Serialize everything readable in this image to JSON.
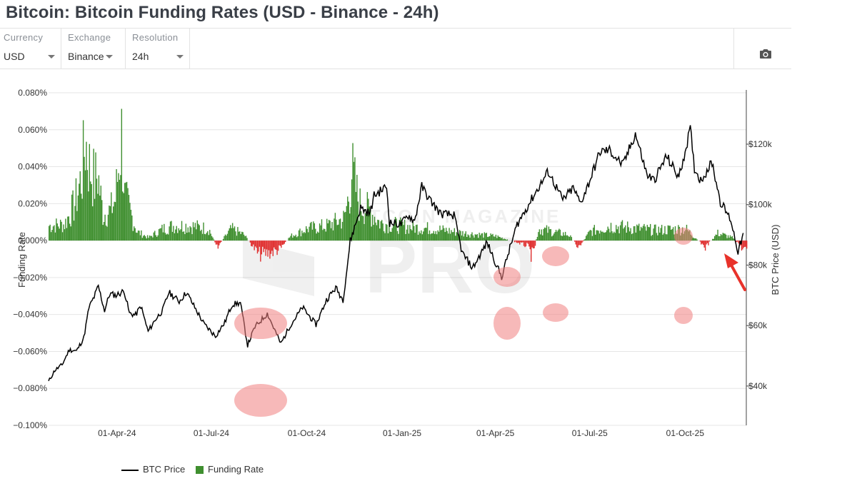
{
  "title": "Bitcoin: Bitcoin Funding Rates (USD - Binance - 24h)",
  "controls": [
    {
      "label": "Currency",
      "value": "USD"
    },
    {
      "label": "Exchange",
      "value": "Binance"
    },
    {
      "label": "Resolution",
      "value": "24h"
    }
  ],
  "camera_icon": "camera-icon",
  "watermark": {
    "line1": "BITCOIN MAGAZINE",
    "line2": "PRO"
  },
  "legend": {
    "price": "BTC Price",
    "funding": "Funding Rate"
  },
  "colors": {
    "price": "#000000",
    "positive": "#3f8f2f",
    "negative": "#e03030",
    "highlight": "#f08080",
    "arrow": "#e8322a",
    "grid": "#e6e6e6"
  },
  "chart_data": {
    "type": "bar+line",
    "ylabel_left": "Funding Rate",
    "ylabel_right": "BTC Price (USD)",
    "left_ticks": [
      "0.080%",
      "0.060%",
      "0.040%",
      "0.020%",
      "0.000%",
      "−0.020%",
      "−0.040%",
      "−0.060%",
      "−0.080%",
      "−0.100%"
    ],
    "left_range": [
      -0.1,
      0.08
    ],
    "right_ticks": [
      "$120k",
      "$100k",
      "$80k",
      "$60k",
      "$40k"
    ],
    "right_range": [
      27000,
      137000
    ],
    "x_ticks": [
      "01-Apr-24",
      "01-Jul-24",
      "01-Oct-24",
      "01-Jan-25",
      "01-Apr-25",
      "01-Jul-25",
      "01-Oct-25"
    ],
    "series": [
      {
        "name": "BTC Price",
        "points": [
          [
            "2024-01-26",
            41500
          ],
          [
            "2024-02-01",
            45200
          ],
          [
            "2024-02-08",
            47000
          ],
          [
            "2024-02-15",
            52000
          ],
          [
            "2024-02-22",
            51600
          ],
          [
            "2024-02-29",
            56000
          ],
          [
            "2024-03-05",
            66000
          ],
          [
            "2024-03-10",
            69500
          ],
          [
            "2024-03-14",
            73000
          ],
          [
            "2024-03-20",
            65000
          ],
          [
            "2024-03-25",
            70500
          ],
          [
            "2024-03-31",
            70000
          ],
          [
            "2024-04-08",
            71500
          ],
          [
            "2024-04-13",
            64000
          ],
          [
            "2024-04-19",
            63500
          ],
          [
            "2024-04-24",
            66500
          ],
          [
            "2024-05-01",
            58000
          ],
          [
            "2024-05-08",
            62000
          ],
          [
            "2024-05-15",
            65000
          ],
          [
            "2024-05-21",
            71000
          ],
          [
            "2024-05-31",
            68000
          ],
          [
            "2024-06-07",
            71000
          ],
          [
            "2024-06-15",
            66000
          ],
          [
            "2024-06-24",
            60500
          ],
          [
            "2024-07-05",
            56500
          ],
          [
            "2024-07-14",
            61000
          ],
          [
            "2024-07-21",
            67000
          ],
          [
            "2024-07-29",
            67500
          ],
          [
            "2024-08-05",
            53500
          ],
          [
            "2024-08-12",
            59500
          ],
          [
            "2024-08-24",
            64000
          ],
          [
            "2024-09-06",
            54000
          ],
          [
            "2024-09-15",
            60000
          ],
          [
            "2024-09-27",
            66000
          ],
          [
            "2024-10-10",
            60300
          ],
          [
            "2024-10-20",
            68500
          ],
          [
            "2024-10-29",
            72500
          ],
          [
            "2024-11-05",
            68500
          ],
          [
            "2024-11-08",
            76500
          ],
          [
            "2024-11-12",
            88000
          ],
          [
            "2024-11-22",
            99000
          ],
          [
            "2024-12-01",
            97000
          ],
          [
            "2024-12-05",
            103000
          ],
          [
            "2024-12-17",
            106000
          ],
          [
            "2024-12-20",
            94000
          ],
          [
            "2024-12-31",
            93500
          ],
          [
            "2025-01-07",
            96500
          ],
          [
            "2025-01-13",
            94500
          ],
          [
            "2025-01-20",
            106000
          ],
          [
            "2025-01-27",
            102000
          ],
          [
            "2025-02-07",
            97000
          ],
          [
            "2025-02-20",
            96500
          ],
          [
            "2025-02-28",
            84000
          ],
          [
            "2025-03-10",
            79000
          ],
          [
            "2025-03-24",
            87500
          ],
          [
            "2025-04-07",
            76000
          ],
          [
            "2025-04-14",
            84500
          ],
          [
            "2025-04-22",
            93500
          ],
          [
            "2025-05-08",
            103000
          ],
          [
            "2025-05-22",
            111000
          ],
          [
            "2025-06-05",
            101500
          ],
          [
            "2025-06-15",
            105500
          ],
          [
            "2025-06-22",
            100500
          ],
          [
            "2025-06-30",
            107000
          ],
          [
            "2025-07-11",
            117500
          ],
          [
            "2025-07-20",
            118000
          ],
          [
            "2025-08-02",
            113000
          ],
          [
            "2025-08-14",
            123500
          ],
          [
            "2025-08-25",
            110000
          ],
          [
            "2025-09-01",
            108000
          ],
          [
            "2025-09-13",
            116000
          ],
          [
            "2025-09-25",
            109000
          ],
          [
            "2025-10-06",
            125000
          ],
          [
            "2025-10-10",
            112000
          ],
          [
            "2025-10-16",
            108000
          ],
          [
            "2025-10-27",
            114000
          ],
          [
            "2025-11-04",
            101000
          ],
          [
            "2025-11-14",
            95000
          ],
          [
            "2025-11-21",
            84500
          ],
          [
            "2025-11-26",
            90000
          ]
        ]
      },
      {
        "name": "Funding Rate",
        "values_note": "daily bars, % per 8h (green ≥ 0, red < 0)",
        "points": [
          [
            "2024-01-26",
            0.01
          ],
          [
            "2024-02-10",
            0.011
          ],
          [
            "2024-02-20",
            0.025
          ],
          [
            "2024-02-27",
            0.045
          ],
          [
            "2024-03-01",
            0.068
          ],
          [
            "2024-03-05",
            0.05
          ],
          [
            "2024-03-10",
            0.04
          ],
          [
            "2024-03-13",
            0.045
          ],
          [
            "2024-03-18",
            0.018
          ],
          [
            "2024-03-25",
            0.02
          ],
          [
            "2024-03-30",
            0.028
          ],
          [
            "2024-04-05",
            0.07
          ],
          [
            "2024-04-08",
            0.03
          ],
          [
            "2024-04-12",
            0.022
          ],
          [
            "2024-04-20",
            0.006
          ],
          [
            "2024-05-01",
            0.002
          ],
          [
            "2024-05-15",
            0.008
          ],
          [
            "2024-05-25",
            0.01
          ],
          [
            "2024-06-10",
            0.01
          ],
          [
            "2024-06-28",
            0.008
          ],
          [
            "2024-07-06",
            -0.004
          ],
          [
            "2024-07-20",
            0.008
          ],
          [
            "2024-08-01",
            0.004
          ],
          [
            "2024-08-15",
            -0.008
          ],
          [
            "2024-08-26",
            -0.007
          ],
          [
            "2024-09-05",
            -0.005
          ],
          [
            "2024-09-15",
            0.003
          ],
          [
            "2024-10-01",
            0.008
          ],
          [
            "2024-10-20",
            0.01
          ],
          [
            "2024-11-06",
            0.015
          ],
          [
            "2024-11-12",
            0.038
          ],
          [
            "2024-11-13",
            0.048
          ],
          [
            "2024-11-20",
            0.025
          ],
          [
            "2024-12-01",
            0.02
          ],
          [
            "2024-12-10",
            0.012
          ],
          [
            "2025-01-10",
            0.009
          ],
          [
            "2025-02-01",
            0.008
          ],
          [
            "2025-03-01",
            0.005
          ],
          [
            "2025-04-01",
            0.003
          ],
          [
            "2025-05-01",
            -0.003
          ],
          [
            "2025-05-07",
            -0.01
          ],
          [
            "2025-05-12",
            0.008
          ],
          [
            "2025-06-10",
            0.004
          ],
          [
            "2025-06-20",
            -0.004
          ],
          [
            "2025-07-01",
            0.006
          ],
          [
            "2025-07-20",
            0.01
          ],
          [
            "2025-09-01",
            0.007
          ],
          [
            "2025-10-01",
            0.008
          ],
          [
            "2025-10-20",
            -0.004
          ],
          [
            "2025-11-01",
            0.005
          ],
          [
            "2025-11-15",
            0.002
          ],
          [
            "2025-11-27",
            -0.006
          ]
        ]
      }
    ],
    "highlight_regions": 11,
    "annotation": "red arrow pointing at latest negative funding reading"
  }
}
